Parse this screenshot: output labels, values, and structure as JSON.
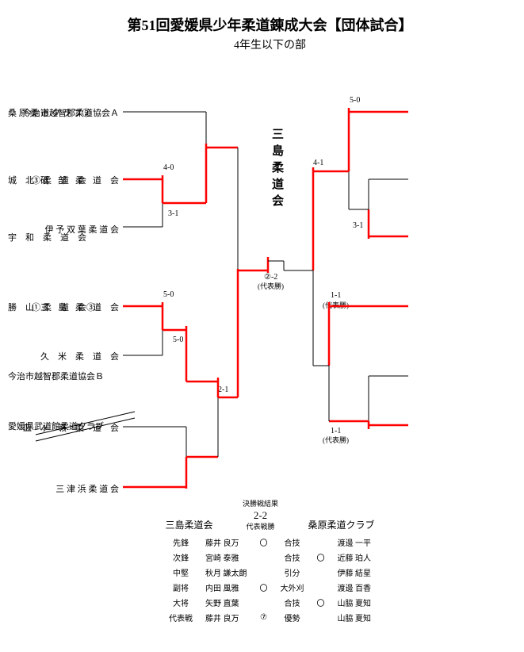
{
  "title": "第51回愛媛県少年柔道錬成大会【団体試合】",
  "subtitle": "4年生以下の部",
  "champion": "三島柔道会",
  "left_teams": [
    "今治市越智郡柔道協会Ａ",
    "③砥　部　柔　道　会",
    "伊 予 双 葉 柔 道 会",
    "①三　島　柔　道　会",
    "久　米　柔　道　会",
    "皿　ヶ　嶺　柔　道　会",
    "三 津 浜 柔 道 会"
  ],
  "right_teams": [
    "桑 原 柔 道 ク ラ ブ②",
    "城　北　柔　道　会",
    "宇　和　柔　道　会",
    "勝　山　柔　道　会③",
    "今治市越智郡柔道協会Ｂ",
    "愛媛県武道館柔道クラブ"
  ],
  "scores_left": {
    "s40": "4-0",
    "s31": "3-1",
    "s50a": "5-0",
    "s50b": "5-0",
    "s21": "2-1"
  },
  "scores_right": {
    "s50": "5-0",
    "s41": "4-1",
    "s31": "3-1",
    "s11a": "1-1",
    "s11a_rep": "(代表勝)",
    "s11b": "1-1",
    "s11b_rep": "(代表勝)"
  },
  "center_score": "②-2",
  "center_rep": "(代表勝)",
  "final": {
    "header": "決勝戦結果",
    "score": "2-2",
    "note": "代表戦勝",
    "teamA": "三島柔道会",
    "teamB": "桑原柔道クラブ",
    "rows": [
      {
        "pos": "先鋒",
        "a": "藤井 良万",
        "am": "〇",
        "tech": "合技",
        "bm": "",
        "b": "渡邊 一平"
      },
      {
        "pos": "次鋒",
        "a": "宮崎 泰雅",
        "am": "",
        "tech": "合技",
        "bm": "〇",
        "b": "近藤 珀人"
      },
      {
        "pos": "中堅",
        "a": "秋月 謙太朗",
        "am": "",
        "tech": "引分",
        "bm": "",
        "b": "伊藤 結星"
      },
      {
        "pos": "副将",
        "a": "内田 風雅",
        "am": "〇",
        "tech": "大外刈",
        "bm": "",
        "b": "渡邊 百香"
      },
      {
        "pos": "大将",
        "a": "矢野 直葉",
        "am": "",
        "tech": "合技",
        "bm": "〇",
        "b": "山脇 夏知"
      },
      {
        "pos": "代表戦",
        "a": "藤井 良万",
        "am": "⑦",
        "tech": "優勢",
        "bm": "",
        "b": "山脇 夏知"
      }
    ]
  },
  "colors": {
    "red": "#ff0000",
    "black": "#000000"
  }
}
